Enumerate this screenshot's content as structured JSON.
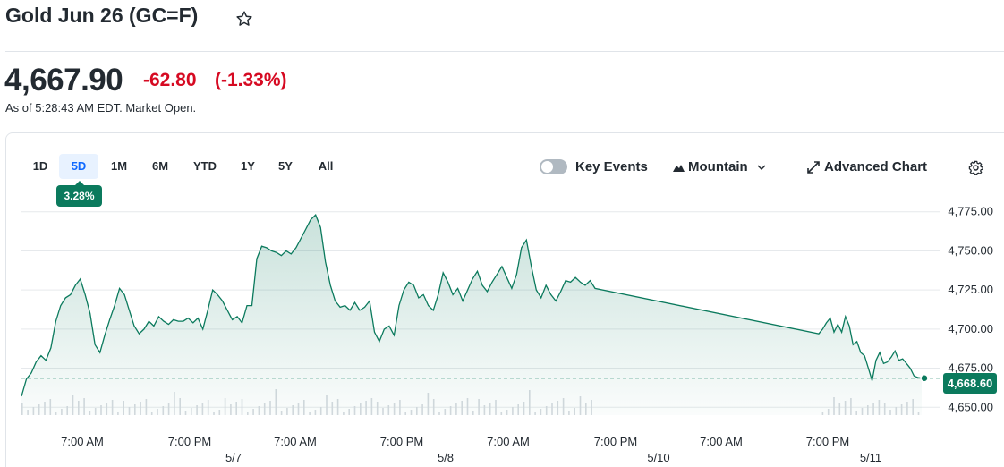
{
  "header": {
    "title": "Gold Jun 26 (GC=F)",
    "star_icon": "star-icon"
  },
  "quote": {
    "price": "4,667.90",
    "change": "-62.80",
    "change_pct": "(-1.33%)",
    "as_of": "As of 5:28:43 AM EDT. Market Open.",
    "down_color": "#d60a22"
  },
  "ranges": [
    "1D",
    "5D",
    "1M",
    "6M",
    "YTD",
    "1Y",
    "5Y",
    "All"
  ],
  "active_range": "5D",
  "range_change": "3.28%",
  "toolbar": {
    "key_events": "Key Events",
    "mountain": "Mountain",
    "advanced": "Advanced Chart",
    "key_events_on": false
  },
  "colors": {
    "line": "#0b7a5d",
    "accent": "#0f69ff"
  },
  "last_price_badge": "4,668.60",
  "chart_data": {
    "type": "area",
    "y_ticks": [
      "4,775.00",
      "4,750.00",
      "4,725.00",
      "4,700.00",
      "4,675.00",
      "4,650.00"
    ],
    "x_time_ticks": [
      "7:00 AM",
      "7:00 PM",
      "7:00 AM",
      "7:00 PM",
      "7:00 AM",
      "7:00 PM",
      "7:00 AM",
      "7:00 PM"
    ],
    "x_date_ticks": [
      "5/7",
      "5/8",
      "5/10",
      "5/11"
    ],
    "ylim": [
      4645,
      4780
    ],
    "reference_value": 4668.6,
    "series": [
      {
        "values": [
          4657,
          4668,
          4672,
          4679,
          4683,
          4680,
          4688,
          4705,
          4715,
          4720,
          4722,
          4728,
          4732,
          4722,
          4710,
          4690,
          4685,
          4696,
          4706,
          4715,
          4726,
          4722,
          4712,
          4702,
          4697,
          4700,
          4705,
          4702,
          4708,
          4705,
          4703,
          4706,
          4705,
          4705,
          4707,
          4704,
          4707,
          4700,
          4712,
          4725,
          4722,
          4718,
          4712,
          4706,
          4708,
          4704,
          4715,
          4715,
          4745,
          4753,
          4752,
          4750,
          4749,
          4747,
          4750,
          4748,
          4752,
          4758,
          4764,
          4770,
          4773,
          4765,
          4743,
          4728,
          4718,
          4714,
          4715,
          4712,
          4717,
          4712,
          4714,
          4718,
          4698,
          4692,
          4700,
          4702,
          4696,
          4715,
          4725,
          4730,
          4728,
          4720,
          4722,
          4715,
          4712,
          4722,
          4736,
          4730,
          4722,
          4726,
          4718,
          4725,
          4732,
          4737,
          4728,
          4724,
          4730,
          4735,
          4740,
          4733,
          4726,
          4735,
          4752,
          4757,
          4740,
          4725,
          4720,
          4728,
          4722,
          4718,
          4724,
          4731,
          4730,
          4733,
          4730,
          4728,
          4731,
          4726,
          4697,
          4700,
          4704,
          4707,
          4698,
          4703,
          4698,
          4708,
          4702,
          4690,
          4692,
          4685,
          4683,
          4675,
          4667,
          4680,
          4685,
          4678,
          4679,
          4682,
          4686,
          4680,
          4681,
          4678,
          4675,
          4670,
          4669,
          4668.6
        ]
      }
    ]
  }
}
